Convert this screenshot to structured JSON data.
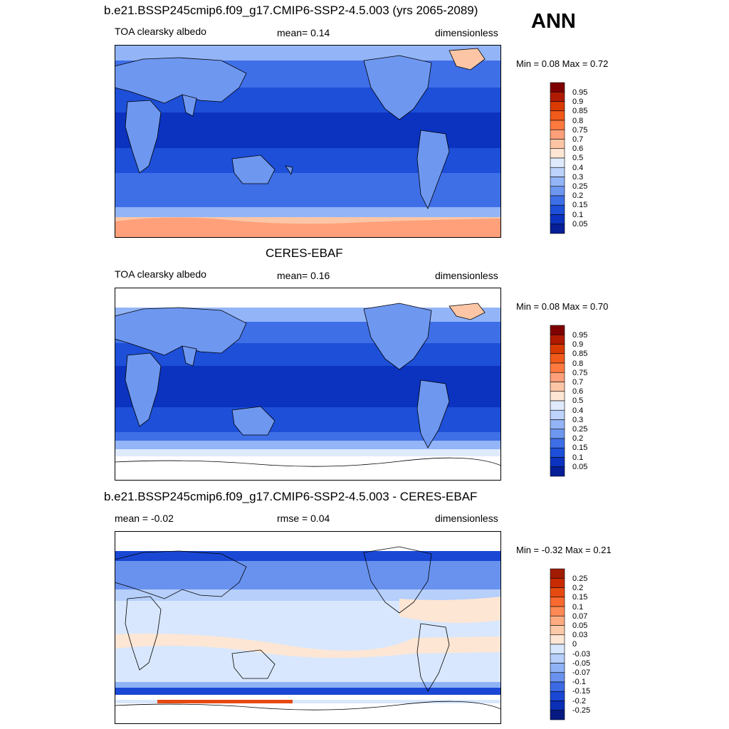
{
  "header": {
    "title1": "b.e21.BSSP245cmip6.f09_g17.CMIP6-SSP2-4.5.003 (yrs 2065-2089)",
    "season": "ANN",
    "title2": "CERES-EBAF",
    "title3": "b.e21.BSSP245cmip6.f09_g17.CMIP6-SSP2-4.5.003 - CERES-EBAF"
  },
  "panels": [
    {
      "left_label": "TOA clearsky albedo",
      "center_label": "mean=   0.14",
      "right_label": "dimensionless",
      "minmax": "Min =    0.08 Max =    0.72",
      "kind": "model"
    },
    {
      "left_label": "TOA clearsky albedo",
      "center_label": "mean=   0.16",
      "right_label": "dimensionless",
      "minmax": "Min =    0.08 Max =    0.70",
      "kind": "obs"
    },
    {
      "left_label": "mean =  -0.02",
      "center_label": "rmse =   0.04",
      "right_label": "dimensionless",
      "minmax": "Min =  -0.32 Max =    0.21",
      "kind": "diff"
    }
  ],
  "colorbars": {
    "abs": {
      "labels": [
        "0.95",
        "0.9",
        "0.85",
        "0.8",
        "0.75",
        "0.7",
        "0.6",
        "0.5",
        "0.4",
        "0.3",
        "0.25",
        "0.2",
        "0.15",
        "0.1",
        "0.05"
      ],
      "colors": [
        "#7f0000",
        "#b01a00",
        "#d83a00",
        "#f05a1a",
        "#ff7a3f",
        "#ffa07a",
        "#fcc6a6",
        "#fde6d4",
        "#dfeafd",
        "#bdd3fb",
        "#93b5f7",
        "#6e97f0",
        "#3f6fe7",
        "#1d4fd8",
        "#0b33c0",
        "#061e96"
      ]
    },
    "diff": {
      "labels": [
        "0.25",
        "0.2",
        "0.15",
        "0.1",
        "0.07",
        "0.05",
        "0.03",
        "0",
        "-0.03",
        "-0.05",
        "-0.07",
        "-0.1",
        "-0.15",
        "-0.2",
        "-0.25"
      ],
      "colors": [
        "#a01c00",
        "#c82b00",
        "#e64a10",
        "#f86a30",
        "#ff8a55",
        "#ffab82",
        "#fccaa8",
        "#fde6d4",
        "#d8e7fd",
        "#b6cffb",
        "#8fb2f6",
        "#6992ef",
        "#3c6ae5",
        "#1a48d4",
        "#0a2fb6",
        "#061a82"
      ]
    }
  }
}
